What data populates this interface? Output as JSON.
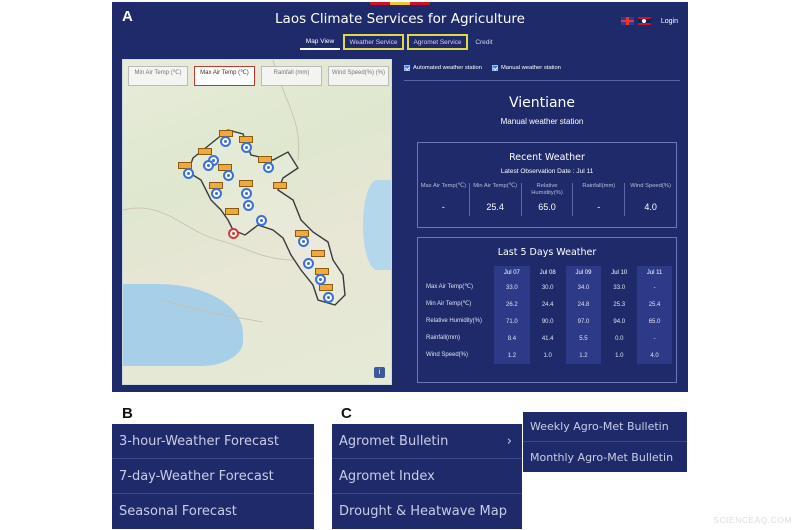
{
  "panel_labels": {
    "a": "A",
    "b": "B",
    "c": "C"
  },
  "app": {
    "title": "Laos Climate Services for Agriculture",
    "login": "Login",
    "nav_tabs": [
      {
        "label": "Map View"
      },
      {
        "label": "Weather Service"
      },
      {
        "label": "Agromet Service"
      },
      {
        "label": "Credit"
      }
    ]
  },
  "map": {
    "tabs": [
      {
        "label": "Min Air Temp (℃)"
      },
      {
        "label": "Max Air Temp (℃)"
      },
      {
        "label": "Rainfall (mm)"
      },
      {
        "label": "Wind Speed(%) (%)"
      }
    ],
    "selected_tab": "Max Air Temp (℃)",
    "info": "i"
  },
  "filters": {
    "automatic": "Automated weather station",
    "manual": "Manual weather station"
  },
  "station": {
    "city": "Vientiane",
    "type": "Manual weather station"
  },
  "recent": {
    "title": "Recent Weather",
    "date": "Latest Observation Date : Jul 11",
    "metrics": [
      {
        "label": "Max Air Temp(℃)",
        "value": "-"
      },
      {
        "label": "Min Air Temp(℃)",
        "value": "25.4"
      },
      {
        "label": "Relative Humidity(%)",
        "value": "65.0"
      },
      {
        "label": "Rainfall(mm)",
        "value": "-"
      },
      {
        "label": "Wind Speed(%)",
        "value": "4.0"
      }
    ]
  },
  "last5": {
    "title": "Last 5 Days Weather",
    "dates": [
      "Jul 07",
      "Jul 08",
      "Jul 09",
      "Jul 10",
      "Jul 11"
    ],
    "rows": [
      {
        "label": "Max Air Temp(℃)",
        "values": [
          "33.0",
          "30.0",
          "34.0",
          "33.0",
          "-"
        ]
      },
      {
        "label": "Min Air Temp(℃)",
        "values": [
          "26.2",
          "24.4",
          "24.8",
          "25.3",
          "25.4"
        ]
      },
      {
        "label": "Relative Humidity(%)",
        "values": [
          "71.0",
          "90.0",
          "97.0",
          "94.0",
          "65.0"
        ]
      },
      {
        "label": "Rainfall(mm)",
        "values": [
          "8.4",
          "41.4",
          "5.5",
          "0.0",
          "-"
        ]
      },
      {
        "label": "Wind Speed(%)",
        "values": [
          "1.2",
          "1.0",
          "1.2",
          "1.0",
          "4.0"
        ]
      }
    ]
  },
  "weather_menu": {
    "items": [
      {
        "label": "3-hour-Weather Forecast"
      },
      {
        "label": "7-day-Weather Forecast"
      },
      {
        "label": "Seasonal Forecast"
      }
    ]
  },
  "agromet_menu": {
    "items": [
      {
        "label": "Agromet Bulletin",
        "chevron": "›"
      },
      {
        "label": "Agromet Index"
      },
      {
        "label": "Drought & Heatwave Map"
      }
    ]
  },
  "bulletin_submenu": {
    "items": [
      {
        "label": "Weekly Agro-Met Bulletin"
      },
      {
        "label": "Monthly Agro-Met Bulletin"
      }
    ]
  },
  "watermark": "SCIENCEAQ.COM",
  "colors": {
    "app_bg": "#1f2a6b",
    "highlight": "#e0d64a",
    "marker_blue": "#3d6fd6",
    "marker_red": "#d83a3a",
    "label_orange": "#f2a93b"
  }
}
